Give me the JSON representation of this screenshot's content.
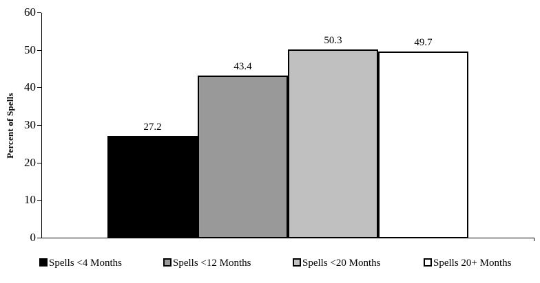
{
  "chart_data": {
    "type": "bar",
    "title": "",
    "xlabel": "",
    "ylabel": "Percent of Spells",
    "ylim": [
      0,
      60
    ],
    "yticks": [
      0,
      10,
      20,
      30,
      40,
      50,
      60
    ],
    "grid": false,
    "legend_position": "bottom",
    "categories": [
      "Spells <4 Months",
      "Spells <12 Months",
      "Spells <20 Months",
      "Spells 20+ Months"
    ],
    "values": [
      27.2,
      43.4,
      50.3,
      49.7
    ],
    "value_labels": [
      "27.2",
      "43.4",
      "50.3",
      "49.7"
    ],
    "bar_colors": [
      "#000000",
      "#999999",
      "#C0C0C0",
      "#FFFFFF"
    ],
    "bar_border_color": "#000000",
    "axis_color": "#000000",
    "background_color": "#FFFFFF"
  }
}
